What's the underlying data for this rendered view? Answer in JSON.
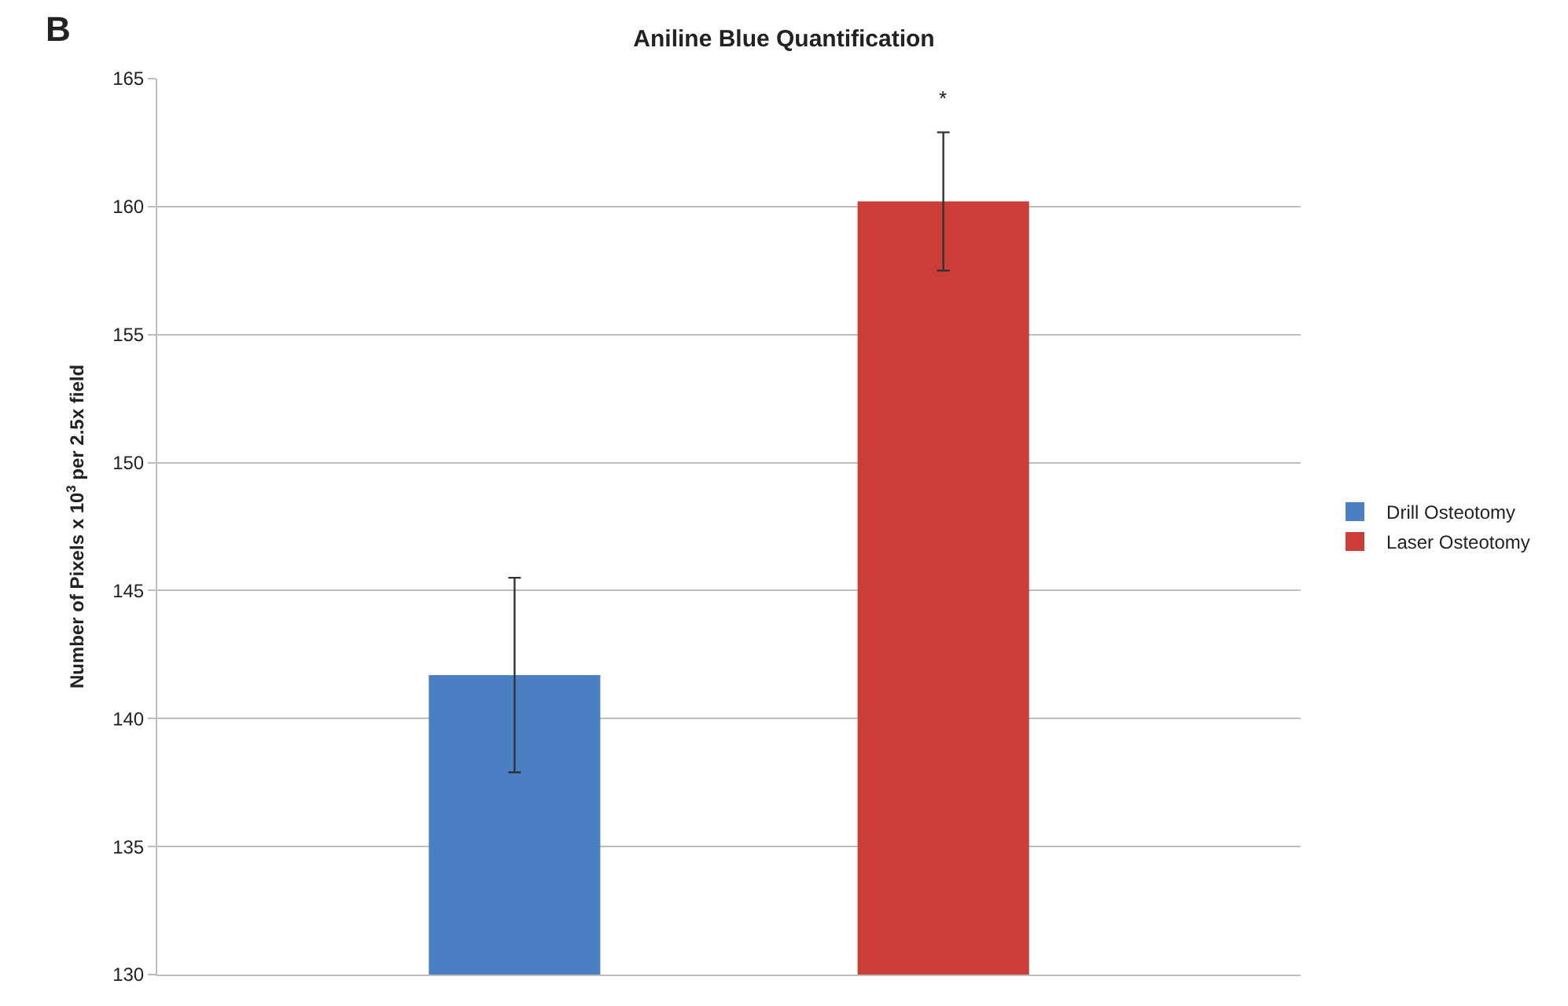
{
  "chart_data": {
    "type": "bar",
    "title": "Aniline Blue Quantification",
    "ylabel": "Number of Pixels x 10$^{3}$ per 2.5x field",
    "categories": [
      null
    ],
    "series": [
      {
        "name": "Drill Osteotomy",
        "color": "#4a7fc4",
        "values": [
          141.7
        ],
        "errors": [
          3.8
        ]
      },
      {
        "name": "Laser Osteotomy",
        "color": "#cc3d38",
        "values": [
          160.2
        ],
        "errors": [
          2.7
        ]
      }
    ],
    "ylim": [
      130,
      165
    ],
    "yticks": [
      130,
      135,
      140,
      145,
      150,
      155,
      160,
      165
    ],
    "grid": "y",
    "legend": "right",
    "annotations": [
      "B",
      "*"
    ]
  }
}
